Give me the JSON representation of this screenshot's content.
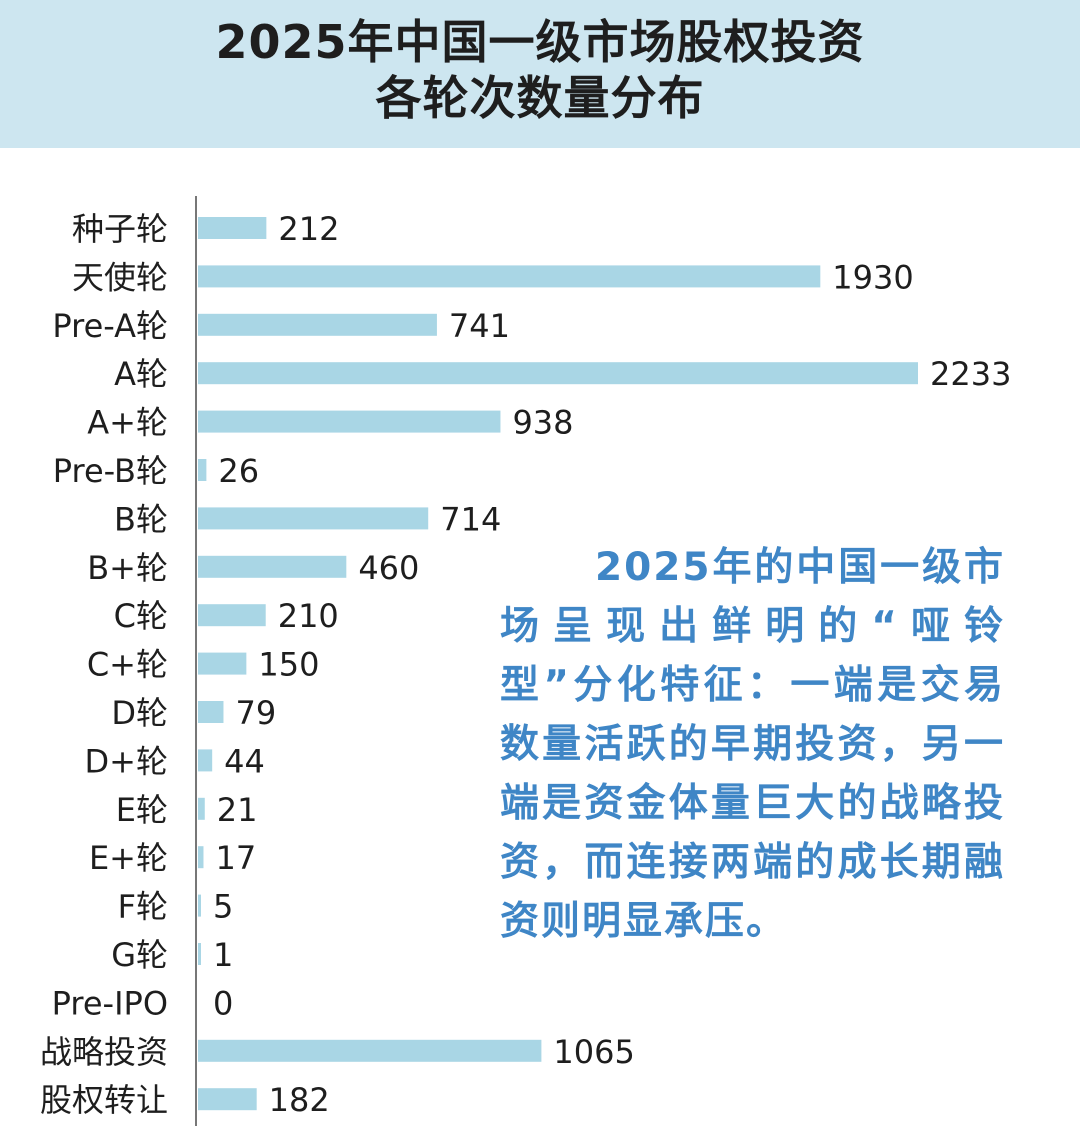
{
  "title_line1": "2025年中国一级市场股权投资",
  "title_line2": "各轮次数量分布",
  "annotation": "2025年的中国一级市场呈现出鲜明的“哑铃型”分化特征：一端是交易数量活跃的早期投资，另一端是资金体量巨大的战略投资，而连接两端的成长期融资则明显承压。",
  "colors": {
    "header_bg": "#cde6f0",
    "bar": "#a9d6e5",
    "axis": "#777777",
    "text": "#1e1e1e",
    "annotation": "#3f86c6"
  },
  "chart_data": {
    "type": "bar",
    "orientation": "horizontal",
    "title": "2025年中国一级市场股权投资各轮次数量分布",
    "categories": [
      "种子轮",
      "天使轮",
      "Pre-A轮",
      "A轮",
      "A+轮",
      "Pre-B轮",
      "B轮",
      "B+轮",
      "C轮",
      "C+轮",
      "D轮",
      "D+轮",
      "E轮",
      "E+轮",
      "F轮",
      "G轮",
      "Pre-IPO",
      "战略投资",
      "股权转让"
    ],
    "values": [
      212,
      1930,
      741,
      2233,
      938,
      26,
      714,
      460,
      210,
      150,
      79,
      44,
      21,
      17,
      5,
      1,
      0,
      1065,
      182
    ],
    "value_labels": [
      "212",
      "1930",
      "741",
      "2233",
      "938",
      "26",
      "714",
      "460",
      "210",
      "150",
      "79",
      "44",
      "21",
      "17",
      "5",
      "1",
      "0",
      "1065",
      "182"
    ],
    "xlim": [
      0,
      2233
    ],
    "grid": false,
    "legend": "none"
  }
}
